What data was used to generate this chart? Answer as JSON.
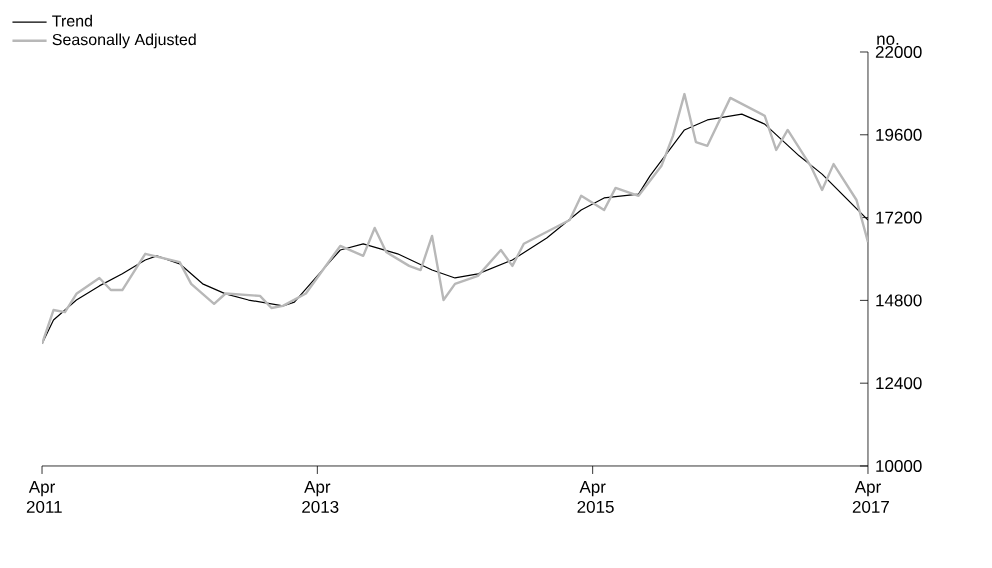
{
  "chart_data": {
    "type": "line",
    "ylabel": "no.",
    "xlim": [
      "2011-04",
      "2017-04"
    ],
    "xticks": [
      {
        "value": "2011-04",
        "label": "Apr 2011"
      },
      {
        "value": "2013-04",
        "label": "Apr 2013"
      },
      {
        "value": "2015-04",
        "label": "Apr 2015"
      },
      {
        "value": "2017-04",
        "label": "Apr 2017"
      }
    ],
    "ylim": [
      10000,
      22000
    ],
    "yticks": [
      10000,
      12400,
      14800,
      17200,
      19600,
      22000
    ],
    "legend": "top left",
    "grid": false,
    "marker": "none",
    "line_style": "solid",
    "series": [
      {
        "name": "Trend",
        "color": "#000000",
        "x": [
          "2011-04",
          "2011-05",
          "2011-07",
          "2011-09",
          "2011-11",
          "2012-01",
          "2012-02",
          "2012-04",
          "2012-06",
          "2012-08",
          "2012-10",
          "2013-01",
          "2013-02",
          "2013-04",
          "2013-06",
          "2013-08",
          "2013-11",
          "2014-02",
          "2014-04",
          "2014-06",
          "2014-09",
          "2014-12",
          "2015-03",
          "2015-05",
          "2015-08",
          "2015-09",
          "2015-12",
          "2016-02",
          "2016-05",
          "2016-07",
          "2016-10",
          "2016-12",
          "2017-04"
        ],
        "values": [
          13540,
          14230,
          14810,
          15220,
          15570,
          15970,
          16090,
          15860,
          15280,
          14990,
          14810,
          14640,
          14750,
          15510,
          16260,
          16440,
          16150,
          15680,
          15450,
          15570,
          15970,
          16610,
          17420,
          17770,
          17880,
          18410,
          19740,
          20030,
          20200,
          19910,
          18990,
          18460,
          17130
        ]
      },
      {
        "name": "Seasonally Adjusted",
        "color": "#b8b8b8",
        "x": [
          "2011-04",
          "2011-05",
          "2011-06",
          "2011-07",
          "2011-09",
          "2011-10",
          "2011-11",
          "2012-01",
          "2012-04",
          "2012-05",
          "2012-07",
          "2012-08",
          "2012-11",
          "2012-12",
          "2013-01",
          "2013-03",
          "2013-06",
          "2013-08",
          "2013-09",
          "2013-10",
          "2013-12",
          "2014-01",
          "2014-02",
          "2014-03",
          "2014-04",
          "2014-06",
          "2014-08",
          "2014-09",
          "2014-10",
          "2015-02",
          "2015-03",
          "2015-05",
          "2015-06",
          "2015-08",
          "2015-10",
          "2015-11",
          "2015-12",
          "2016-01",
          "2016-02",
          "2016-04",
          "2016-07",
          "2016-08",
          "2016-09",
          "2016-11",
          "2016-12",
          "2017-01",
          "2017-03",
          "2017-04"
        ],
        "values": [
          13540,
          14520,
          14460,
          14990,
          15450,
          15100,
          15100,
          16150,
          15910,
          15280,
          14700,
          15000,
          14930,
          14580,
          14640,
          15000,
          16380,
          16090,
          16900,
          16200,
          15800,
          15680,
          16670,
          14810,
          15280,
          15510,
          16260,
          15800,
          16440,
          17130,
          17830,
          17420,
          18060,
          17830,
          18700,
          19570,
          20780,
          19390,
          19280,
          20670,
          20150,
          19160,
          19740,
          18700,
          18000,
          18750,
          17710,
          16490
        ]
      }
    ]
  }
}
